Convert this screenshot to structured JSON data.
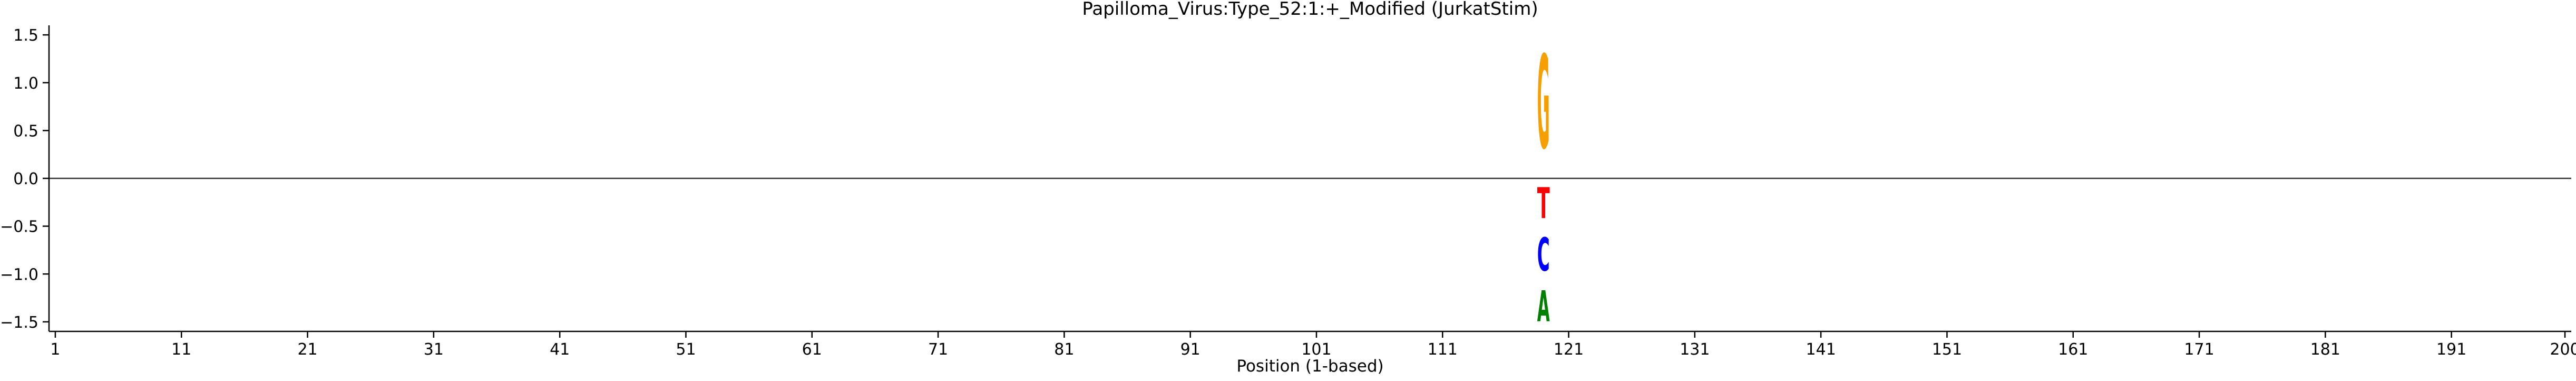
{
  "chart_data": {
    "type": "sequence-logo",
    "title": "Papilloma_Virus:Type_52:1:+_Modified  (JurkatStim)",
    "xlabel": "Position (1-based)",
    "ylabel": "",
    "xlim": [
      0.5,
      200.5
    ],
    "ylim": [
      -1.6,
      1.6
    ],
    "x_ticks": [
      1,
      11,
      21,
      31,
      41,
      51,
      61,
      71,
      81,
      91,
      101,
      111,
      121,
      131,
      141,
      151,
      161,
      171,
      181,
      191,
      200
    ],
    "y_ticks": [
      -1.5,
      -1.0,
      -0.5,
      0.0,
      0.5,
      1.0,
      1.5
    ],
    "y_tick_labels": [
      "−1.5",
      "−1.0",
      "−0.5",
      "0.0",
      "0.5",
      "1.0",
      "1.5"
    ],
    "zero_line": true,
    "grid": false,
    "letters": [
      {
        "position": 119,
        "base": "G",
        "bottom": 0.0,
        "top": 1.57,
        "color": "#f59f00"
      },
      {
        "position": 119,
        "base": "T",
        "bottom": -0.52,
        "top": 0.0,
        "color": "#ff0000"
      },
      {
        "position": 119,
        "base": "C",
        "bottom": -1.08,
        "top": -0.52,
        "color": "#0000ff"
      },
      {
        "position": 119,
        "base": "A",
        "bottom": -1.6,
        "top": -1.08,
        "color": "#008000"
      }
    ]
  }
}
